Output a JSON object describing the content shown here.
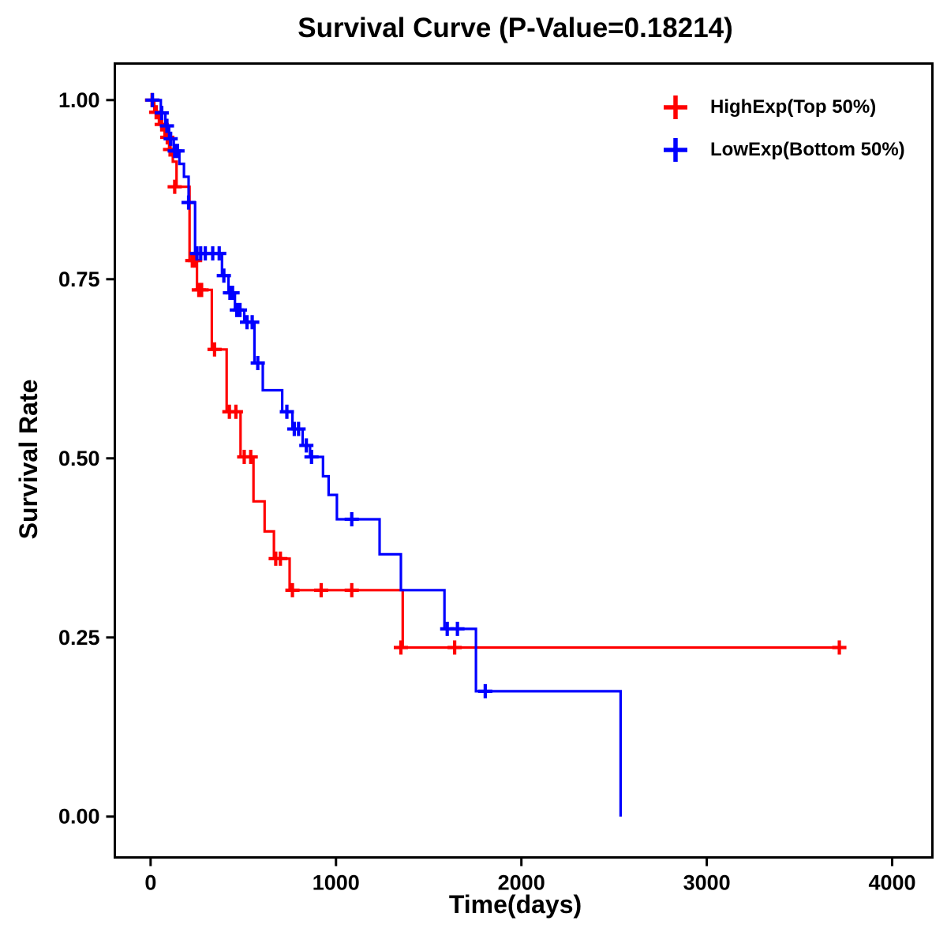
{
  "chart_data": {
    "type": "line",
    "subtype": "kaplan-meier-step",
    "title": "Survival Curve (P-Value=0.18214)",
    "xlabel": "Time(days)",
    "ylabel": "Survival Rate",
    "p_value": "0.18214",
    "xlim": [
      -193,
      4217
    ],
    "ylim": [
      -0.057,
      1.051
    ],
    "xticks": [
      0,
      1000,
      2000,
      3000,
      4000
    ],
    "yticks": [
      0.0,
      0.25,
      0.5,
      0.75,
      1.0
    ],
    "grid": false,
    "legend_position": "top-right",
    "series": [
      {
        "name": "HighExp(Top 50%)",
        "color": "#FF0000",
        "steps": [
          [
            0,
            1.0
          ],
          [
            20,
            0.983
          ],
          [
            45,
            0.966
          ],
          [
            75,
            0.948
          ],
          [
            100,
            0.931
          ],
          [
            120,
            0.914
          ],
          [
            140,
            0.879
          ],
          [
            210,
            0.776
          ],
          [
            250,
            0.735
          ],
          [
            330,
            0.652
          ],
          [
            410,
            0.565
          ],
          [
            485,
            0.502
          ],
          [
            555,
            0.44
          ],
          [
            615,
            0.398
          ],
          [
            665,
            0.36
          ],
          [
            750,
            0.316
          ],
          [
            1360,
            0.236
          ],
          [
            3720,
            0.236
          ]
        ],
        "censors": [
          [
            8,
            1.0
          ],
          [
            30,
            0.983
          ],
          [
            60,
            0.966
          ],
          [
            90,
            0.948
          ],
          [
            105,
            0.931
          ],
          [
            130,
            0.879
          ],
          [
            225,
            0.776
          ],
          [
            240,
            0.776
          ],
          [
            260,
            0.735
          ],
          [
            275,
            0.735
          ],
          [
            345,
            0.652
          ],
          [
            425,
            0.565
          ],
          [
            460,
            0.565
          ],
          [
            505,
            0.502
          ],
          [
            540,
            0.502
          ],
          [
            675,
            0.36
          ],
          [
            700,
            0.36
          ],
          [
            765,
            0.316
          ],
          [
            920,
            0.316
          ],
          [
            1085,
            0.316
          ],
          [
            1350,
            0.236
          ],
          [
            1640,
            0.236
          ],
          [
            3715,
            0.236
          ]
        ]
      },
      {
        "name": "LowExp(Bottom 50%)",
        "color": "#0000FF",
        "steps": [
          [
            0,
            1.0
          ],
          [
            55,
            0.982
          ],
          [
            80,
            0.964
          ],
          [
            100,
            0.946
          ],
          [
            125,
            0.929
          ],
          [
            155,
            0.911
          ],
          [
            180,
            0.893
          ],
          [
            205,
            0.857
          ],
          [
            240,
            0.786
          ],
          [
            385,
            0.755
          ],
          [
            420,
            0.731
          ],
          [
            455,
            0.707
          ],
          [
            505,
            0.69
          ],
          [
            560,
            0.633
          ],
          [
            605,
            0.595
          ],
          [
            710,
            0.565
          ],
          [
            765,
            0.541
          ],
          [
            820,
            0.518
          ],
          [
            860,
            0.502
          ],
          [
            930,
            0.475
          ],
          [
            960,
            0.449
          ],
          [
            1005,
            0.415
          ],
          [
            1235,
            0.366
          ],
          [
            1350,
            0.316
          ],
          [
            1585,
            0.262
          ],
          [
            1755,
            0.175
          ],
          [
            2535,
            0.0
          ]
        ],
        "censors": [
          [
            10,
            1.0
          ],
          [
            60,
            0.982
          ],
          [
            88,
            0.964
          ],
          [
            108,
            0.946
          ],
          [
            130,
            0.929
          ],
          [
            145,
            0.929
          ],
          [
            205,
            0.857
          ],
          [
            250,
            0.786
          ],
          [
            270,
            0.786
          ],
          [
            295,
            0.786
          ],
          [
            335,
            0.786
          ],
          [
            370,
            0.786
          ],
          [
            395,
            0.755
          ],
          [
            428,
            0.731
          ],
          [
            442,
            0.731
          ],
          [
            465,
            0.707
          ],
          [
            482,
            0.707
          ],
          [
            520,
            0.69
          ],
          [
            548,
            0.69
          ],
          [
            578,
            0.633
          ],
          [
            735,
            0.565
          ],
          [
            775,
            0.541
          ],
          [
            798,
            0.541
          ],
          [
            840,
            0.518
          ],
          [
            868,
            0.502
          ],
          [
            1085,
            0.415
          ],
          [
            1600,
            0.262
          ],
          [
            1655,
            0.262
          ],
          [
            1805,
            0.175
          ]
        ]
      }
    ]
  }
}
